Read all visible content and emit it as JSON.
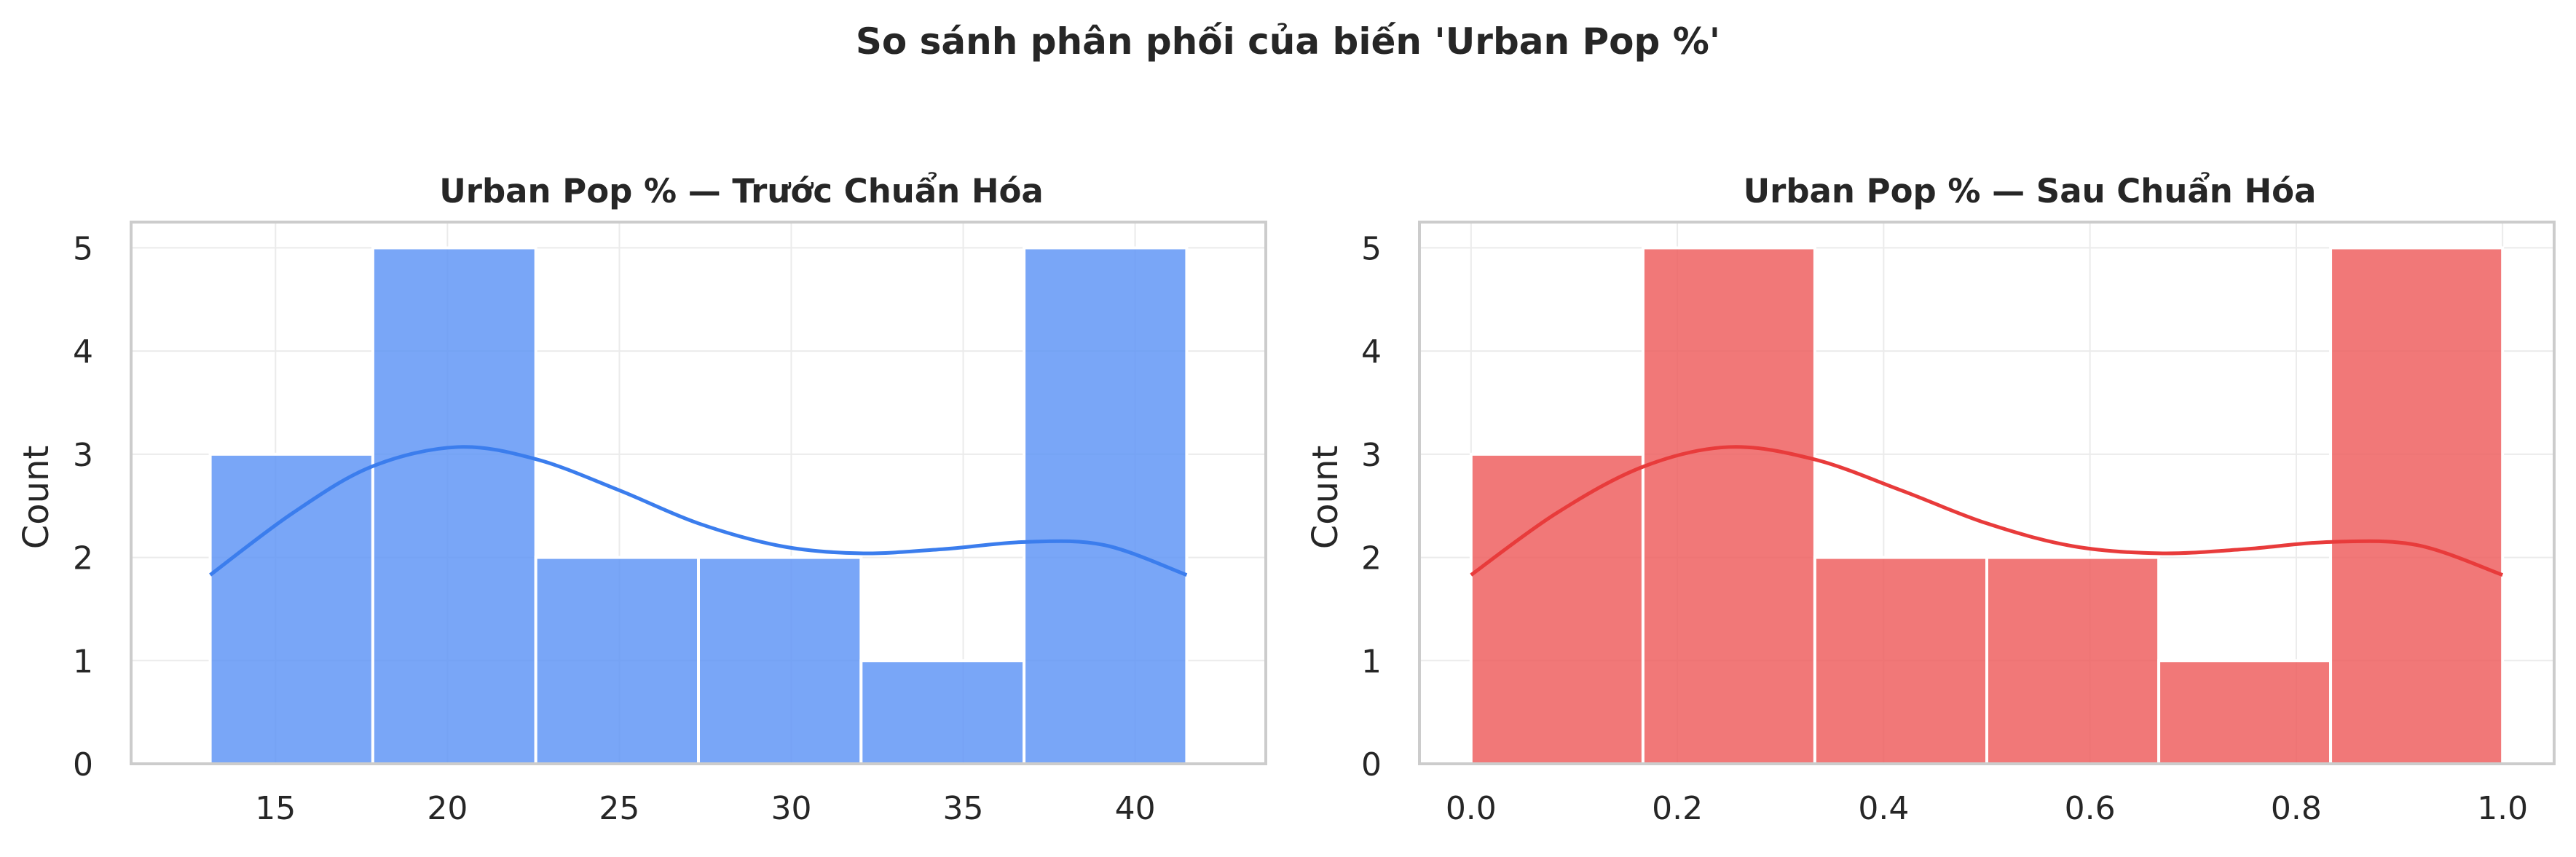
{
  "suptitle": "So sánh phân phối của biến 'Urban Pop %'",
  "chart_data": [
    {
      "type": "bar",
      "subtype": "histogram",
      "title": "Urban Pop % — Trước Chuẩn Hóa",
      "xlabel": "",
      "ylabel": "Count",
      "bin_edges": [
        13.1,
        17.83,
        22.57,
        27.3,
        32.03,
        36.77,
        41.5
      ],
      "values": [
        3,
        5,
        2,
        2,
        1,
        5
      ],
      "xlim": [
        10.8,
        43.8
      ],
      "ylim": [
        0,
        5.25
      ],
      "xticks": [
        15,
        20,
        25,
        30,
        35,
        40
      ],
      "xtick_labels": [
        "15",
        "20",
        "25",
        "30",
        "35",
        "40"
      ],
      "yticks": [
        0,
        1,
        2,
        3,
        4,
        5
      ],
      "ytick_labels": [
        "0",
        "1",
        "2",
        "3",
        "4",
        "5"
      ],
      "kde": {
        "x": [
          13.1,
          15.5,
          17.8,
          20.3,
          22.6,
          25,
          27.3,
          29.7,
          32,
          34.4,
          36.8,
          39.1,
          41.5
        ],
        "y": [
          1.83,
          2.43,
          2.88,
          3.07,
          2.95,
          2.65,
          2.33,
          2.11,
          2.04,
          2.08,
          2.15,
          2.12,
          1.83
        ]
      },
      "grid": true,
      "color": "#5b93f5",
      "line_color": "#3b7ded"
    },
    {
      "type": "bar",
      "subtype": "histogram",
      "title": "Urban Pop % — Sau Chuẩn Hóa",
      "xlabel": "",
      "ylabel": "Count",
      "bin_edges": [
        0.0,
        0.1667,
        0.3333,
        0.5,
        0.6667,
        0.8333,
        1.0
      ],
      "values": [
        3,
        5,
        2,
        2,
        1,
        5
      ],
      "xlim": [
        -0.05,
        1.05
      ],
      "ylim": [
        0,
        5.25
      ],
      "xticks": [
        0.0,
        0.2,
        0.4,
        0.6,
        0.8,
        1.0
      ],
      "xtick_labels": [
        "0.0",
        "0.2",
        "0.4",
        "0.6",
        "0.8",
        "1.0"
      ],
      "yticks": [
        0,
        1,
        2,
        3,
        4,
        5
      ],
      "ytick_labels": [
        "0",
        "1",
        "2",
        "3",
        "4",
        "5"
      ],
      "kde": {
        "x": [
          0.0,
          0.083,
          0.167,
          0.25,
          0.333,
          0.417,
          0.5,
          0.583,
          0.667,
          0.75,
          0.833,
          0.917,
          1.0
        ],
        "y": [
          1.83,
          2.43,
          2.88,
          3.07,
          2.95,
          2.65,
          2.33,
          2.11,
          2.04,
          2.08,
          2.15,
          2.12,
          1.83
        ]
      },
      "grid": true,
      "color": "#ee5a5a",
      "line_color": "#e83b3b"
    }
  ]
}
